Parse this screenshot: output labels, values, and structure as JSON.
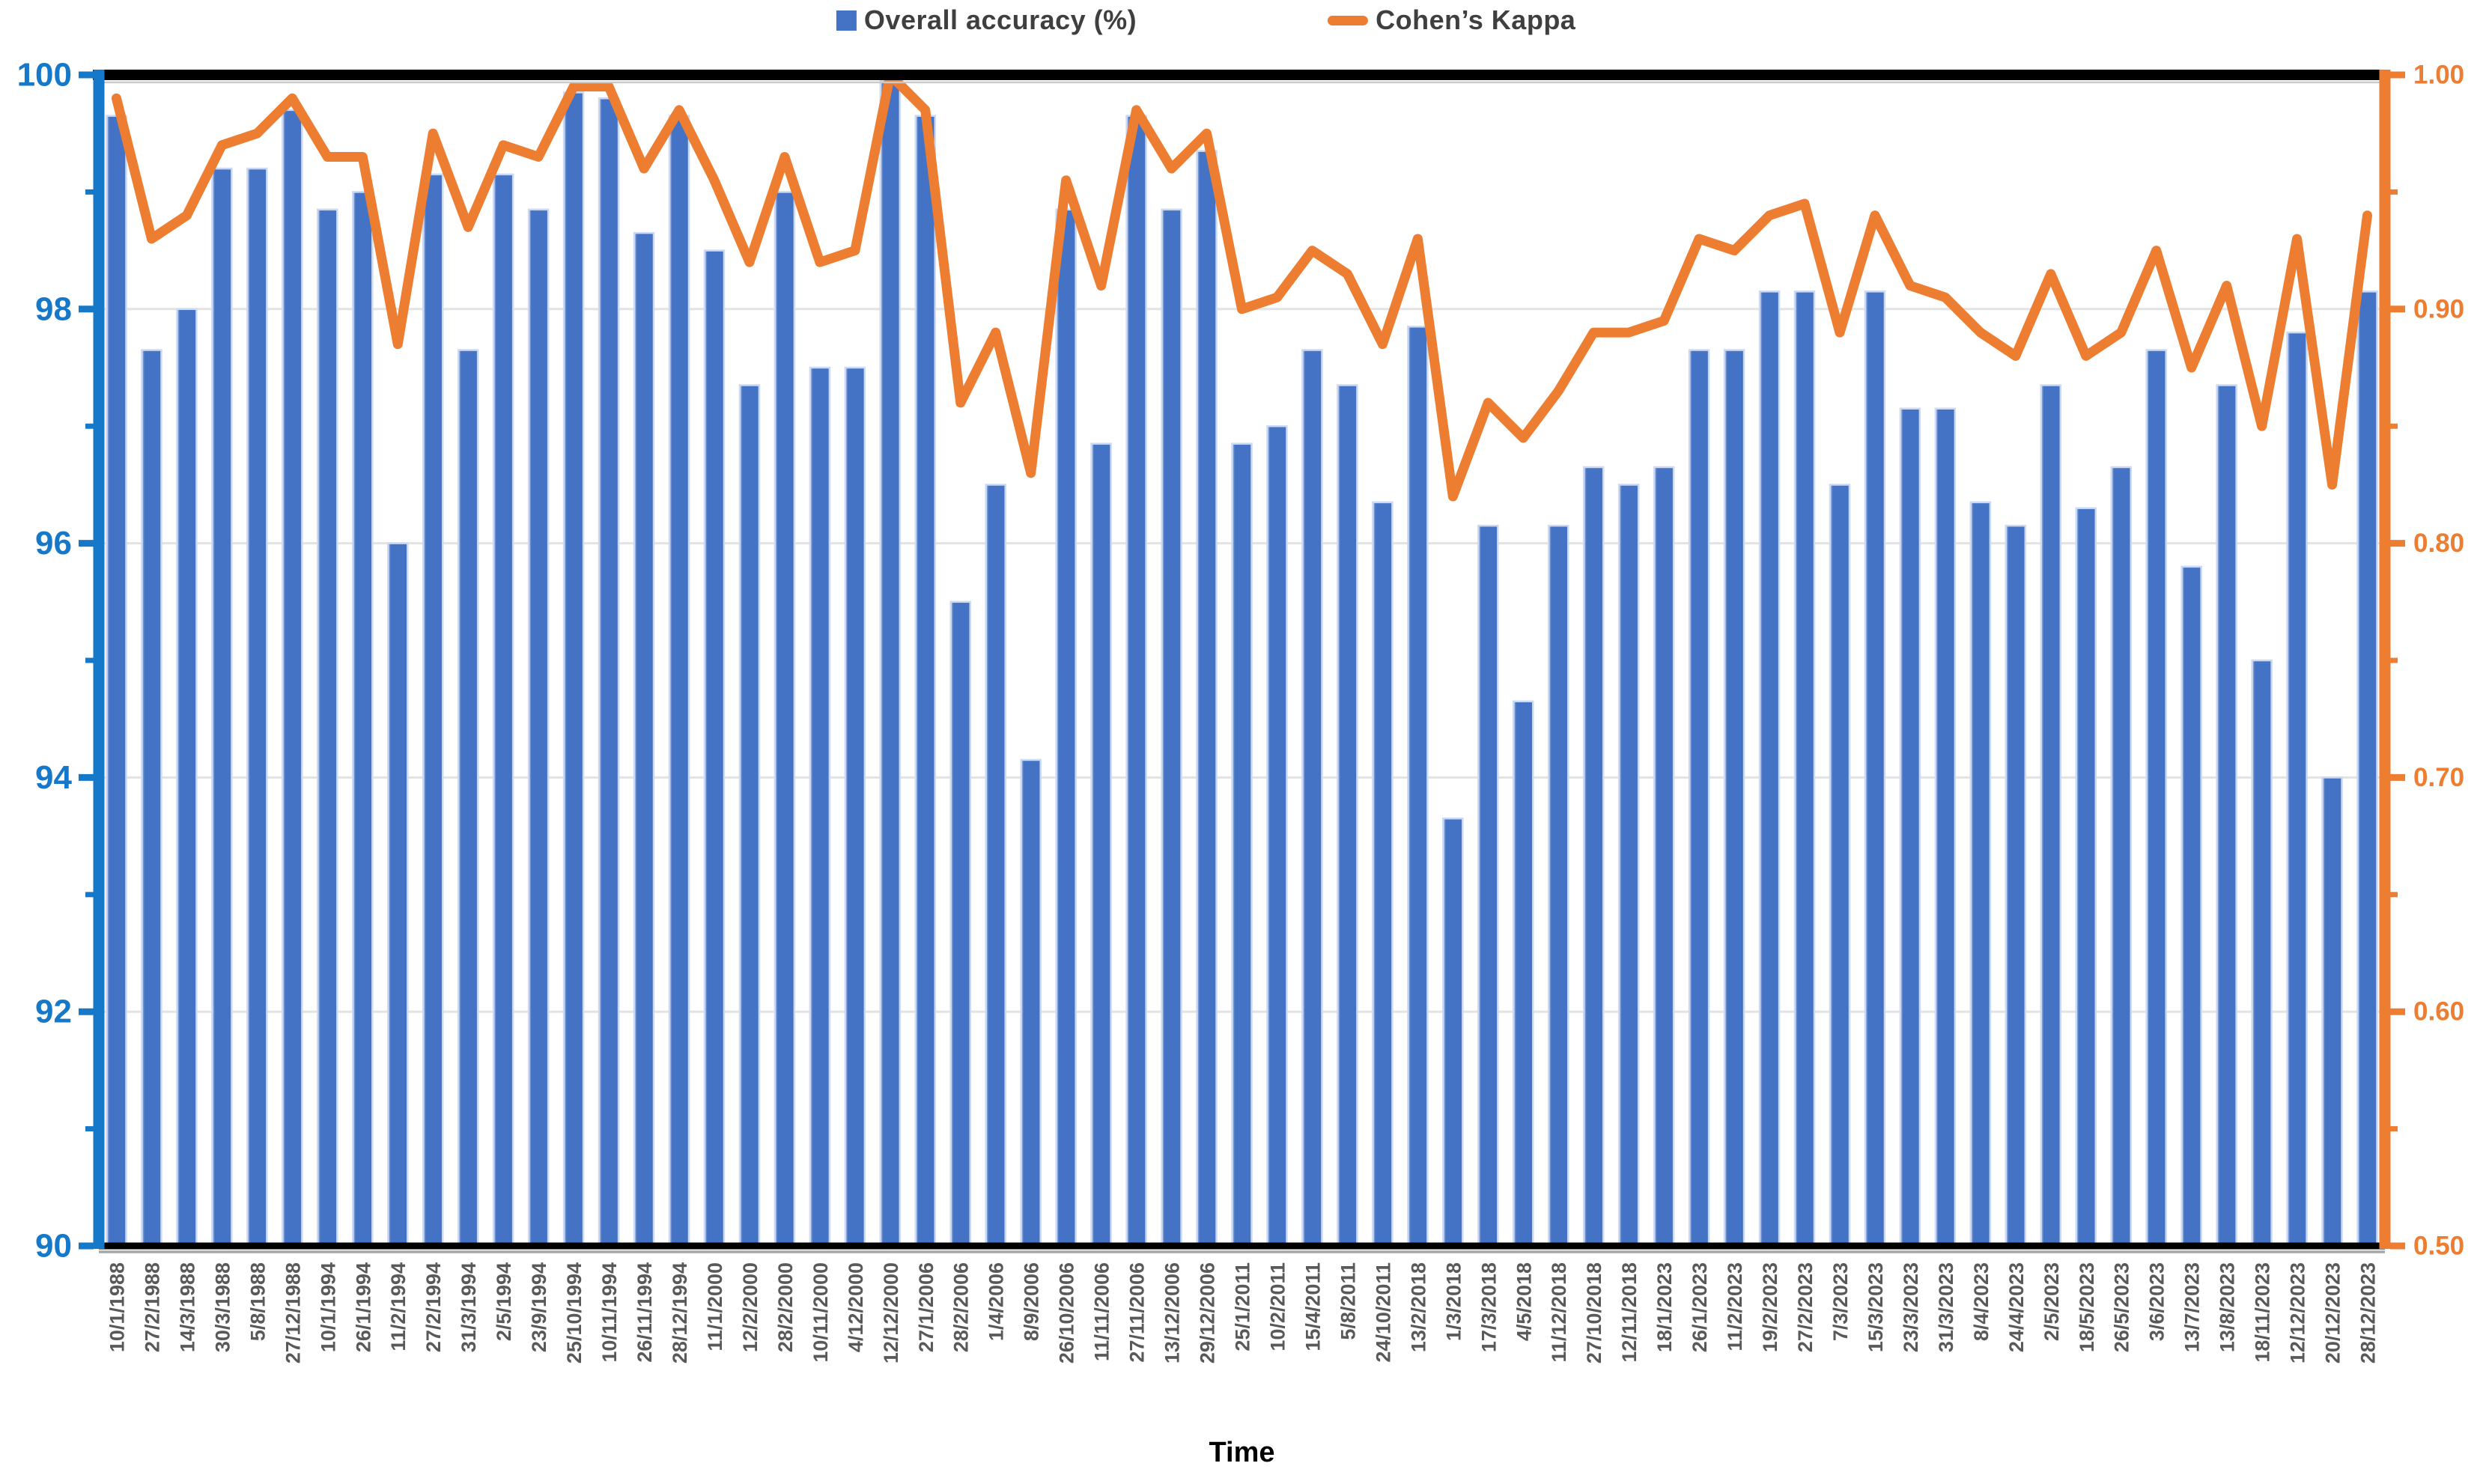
{
  "legend": {
    "items": [
      {
        "label": "Overall accuracy (%)",
        "marker": "square",
        "color": "#4472C4"
      },
      {
        "label": "Cohen’s Kappa",
        "marker": "dash",
        "color": "#ED7D31"
      }
    ]
  },
  "axes": {
    "left": {
      "tick_labels": [
        "100",
        "98",
        "96",
        "94",
        "92",
        "90"
      ],
      "color": "#1678C8"
    },
    "right": {
      "tick_labels": [
        "1.00",
        "0.90",
        "0.80",
        "0.70",
        "0.60",
        "0.50"
      ],
      "color": "#ED7D31"
    },
    "x": {
      "title": "Time",
      "label_color": "#595959"
    }
  },
  "chart_data": {
    "type": "combo",
    "title": "",
    "xlabel": "Time",
    "grid": true,
    "legend_position": "top",
    "left_axis": {
      "min": 90,
      "max": 100,
      "major": 2,
      "minor": 1
    },
    "right_axis": {
      "min": 0.5,
      "max": 1.0,
      "major": 0.1,
      "minor": 0.05
    },
    "categories": [
      "10/1/1988",
      "27/2/1988",
      "14/3/1988",
      "30/3/1988",
      "5/8/1988",
      "27/12/1988",
      "10/1/1994",
      "26/1/1994",
      "11/2/1994",
      "27/2/1994",
      "31/3/1994",
      "2/5/1994",
      "23/9/1994",
      "25/10/1994",
      "10/11/1994",
      "26/11/1994",
      "28/12/1994",
      "11/1/2000",
      "12/2/2000",
      "28/2/2000",
      "10/11/2000",
      "4/12/2000",
      "12/12/2000",
      "27/1/2006",
      "28/2/2006",
      "1/4/2006",
      "8/9/2006",
      "26/10/2006",
      "11/11/2006",
      "27/11/2006",
      "13/12/2006",
      "29/12/2006",
      "25/1/2011",
      "10/2/2011",
      "15/4/2011",
      "5/8/2011",
      "24/10/2011",
      "13/2/2018",
      "1/3/2018",
      "17/3/2018",
      "4/5/2018",
      "11/12/2018",
      "27/10/2018",
      "12/11/2018",
      "18/1/2023",
      "26/1/2023",
      "11/2/2023",
      "19/2/2023",
      "27/2/2023",
      "7/3/2023",
      "15/3/2023",
      "23/3/2023",
      "31/3/2023",
      "8/4/2023",
      "24/4/2023",
      "2/5/2023",
      "18/5/2023",
      "26/5/2023",
      "3/6/2023",
      "13/7/2023",
      "13/8/2023",
      "18/11/2023",
      "12/12/2023",
      "20/12/2023",
      "28/12/2023"
    ],
    "series": [
      {
        "name": "Overall accuracy (%)",
        "type": "bar",
        "axis": "left",
        "color": "#4472C4",
        "edge_color": "#CBD9F2",
        "values": [
          99.65,
          97.65,
          98.0,
          99.2,
          99.2,
          99.7,
          98.85,
          99.0,
          96.0,
          99.15,
          97.65,
          99.15,
          98.85,
          99.85,
          99.8,
          98.65,
          99.65,
          98.5,
          97.35,
          99.0,
          97.5,
          97.5,
          99.95,
          99.65,
          95.5,
          96.5,
          94.15,
          98.85,
          96.85,
          99.65,
          98.85,
          99.35,
          96.85,
          97.0,
          97.65,
          97.35,
          96.35,
          97.85,
          93.65,
          96.15,
          94.65,
          96.15,
          96.65,
          96.5,
          96.65,
          97.65,
          97.65,
          98.15,
          98.15,
          96.5,
          98.15,
          97.15,
          97.15,
          96.35,
          96.15,
          97.35,
          96.3,
          96.65,
          97.65,
          95.8,
          97.35,
          95.0,
          97.8,
          94.0,
          98.15
        ]
      },
      {
        "name": "Cohen’s Kappa",
        "type": "line",
        "axis": "right",
        "color": "#ED7D31",
        "values": [
          0.99,
          0.93,
          0.94,
          0.97,
          0.975,
          0.99,
          0.965,
          0.965,
          0.885,
          0.975,
          0.935,
          0.97,
          0.965,
          0.995,
          0.995,
          0.96,
          0.985,
          0.955,
          0.92,
          0.965,
          0.92,
          0.925,
          1.0,
          0.985,
          0.86,
          0.89,
          0.83,
          0.955,
          0.91,
          0.985,
          0.96,
          0.975,
          0.9,
          0.905,
          0.925,
          0.915,
          0.885,
          0.93,
          0.82,
          0.86,
          0.845,
          0.865,
          0.89,
          0.89,
          0.895,
          0.93,
          0.925,
          0.94,
          0.945,
          0.89,
          0.94,
          0.91,
          0.905,
          0.89,
          0.88,
          0.915,
          0.88,
          0.89,
          0.925,
          0.875,
          0.91,
          0.85,
          0.93,
          0.825,
          0.94
        ]
      }
    ],
    "colors": {
      "bar": "#4472C4",
      "line": "#ED7D31",
      "left_axis": "#1678C8",
      "right_axis": "#ED7D31",
      "gridline": "#E3E3E3",
      "plot_border_top": "#000000",
      "plot_border_bottom": "#000000",
      "x_labels": "#595959"
    }
  }
}
